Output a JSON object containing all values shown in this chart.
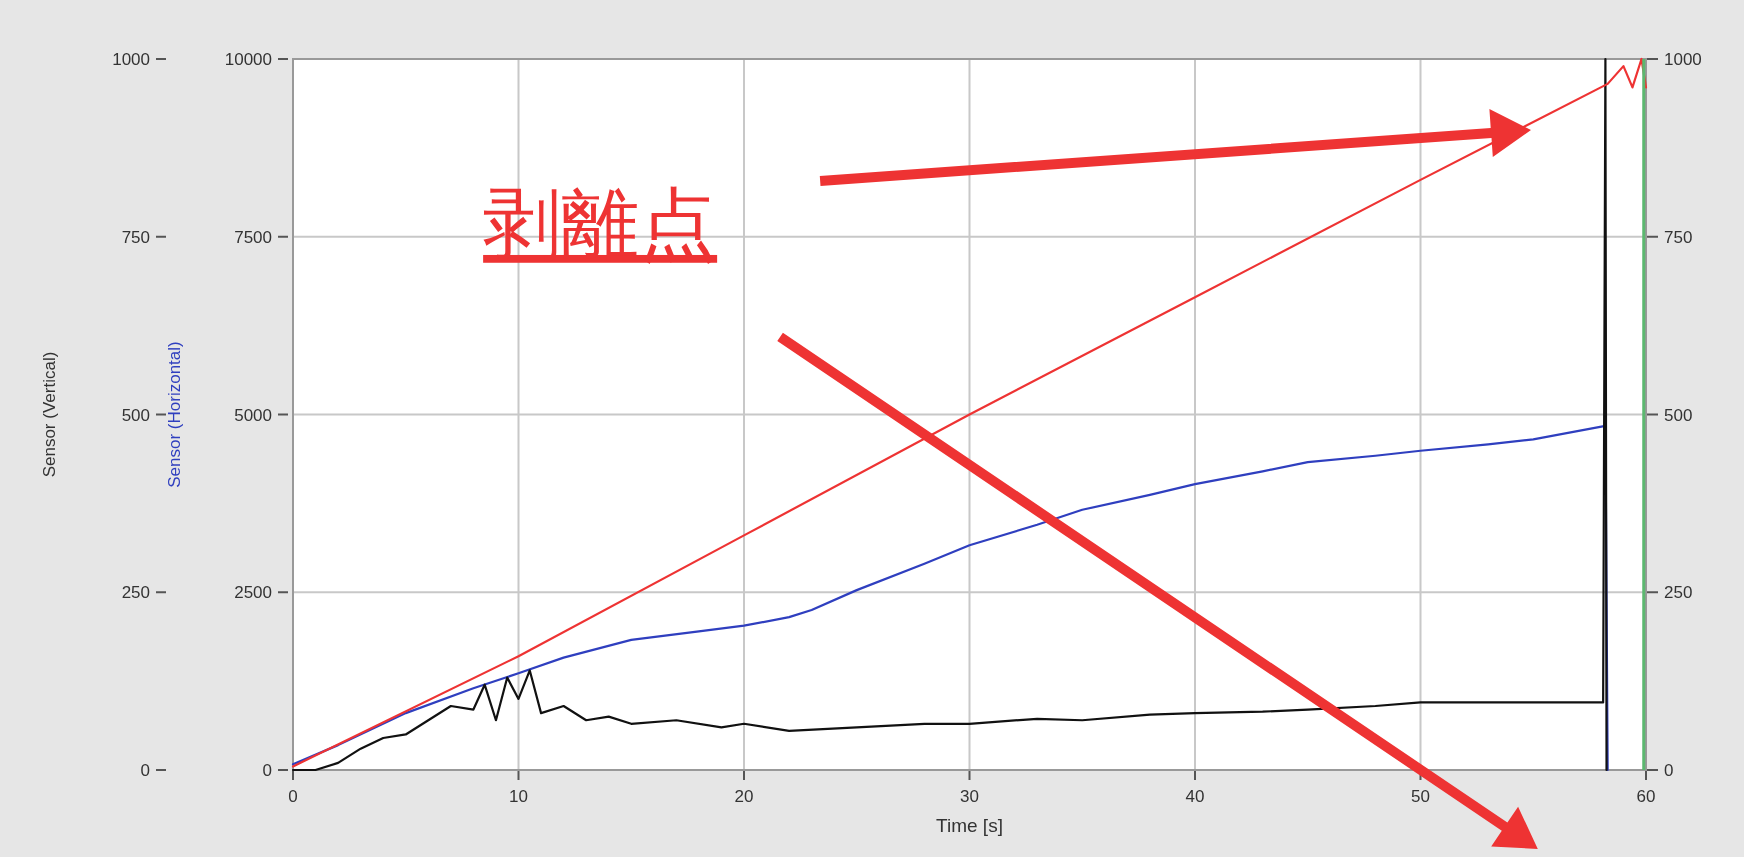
{
  "chart_data": {
    "type": "line",
    "xlabel": "Time [s]",
    "ylabel": "Sensor (Horizontal)",
    "y3label": "Sensor (Vertical)",
    "xlim": [
      0,
      60
    ],
    "xticks": [
      0,
      10,
      20,
      30,
      40,
      50,
      60
    ],
    "ylim": [
      0,
      10000
    ],
    "yticks": [
      0,
      2500,
      5000,
      7500,
      10000
    ],
    "y2lim": [
      0,
      1000
    ],
    "y2ticks": [
      0,
      250,
      500,
      750,
      1000
    ],
    "y3lim": [
      0,
      1000
    ],
    "y3ticks": [
      0,
      250,
      500,
      750,
      1000
    ],
    "grid": true,
    "line_style": "solid",
    "ref_lines": [
      {
        "axis": "x",
        "value": 59.9,
        "label": null,
        "color": "#5cb870"
      }
    ],
    "annotations": [
      "剥離点"
    ],
    "series": [
      {
        "axis": "y",
        "color": "#2f3fbf",
        "x": [
          0,
          2,
          5,
          8,
          10,
          12,
          15,
          18,
          20,
          22,
          23,
          25,
          28,
          30,
          33,
          35,
          38,
          40,
          43,
          45,
          48,
          50,
          53,
          55,
          58.2,
          58.3
        ],
        "values": [
          80,
          350,
          800,
          1150,
          1360,
          1580,
          1830,
          1950,
          2030,
          2150,
          2250,
          2530,
          2900,
          3160,
          3450,
          3660,
          3870,
          4020,
          4200,
          4330,
          4420,
          4490,
          4580,
          4650,
          4840,
          0
        ]
      },
      {
        "axis": "y3",
        "color": "#111111",
        "x": [
          0,
          1,
          2,
          3,
          4,
          5,
          6,
          7,
          8,
          8.5,
          9,
          9.5,
          10,
          10.5,
          11,
          12,
          13,
          14,
          15,
          17,
          19,
          20,
          22,
          25,
          28,
          30,
          33,
          35,
          38,
          40,
          43,
          45,
          48,
          50,
          53,
          55,
          58.1,
          58.2,
          58.25
        ],
        "values": [
          0,
          0,
          10,
          30,
          45,
          50,
          70,
          90,
          85,
          120,
          70,
          130,
          100,
          140,
          80,
          90,
          70,
          75,
          65,
          70,
          60,
          65,
          55,
          60,
          65,
          65,
          72,
          70,
          78,
          80,
          82,
          85,
          90,
          95,
          95,
          95,
          95,
          1000,
          0
        ]
      },
      {
        "axis": "y2",
        "color": "#ee3333",
        "x": [
          0,
          10,
          20,
          30,
          40,
          50,
          58.3,
          59,
          59.4,
          59.8,
          60
        ],
        "values": [
          5,
          160,
          330,
          500,
          665,
          830,
          965,
          990,
          960,
          1000,
          960
        ]
      }
    ]
  }
}
